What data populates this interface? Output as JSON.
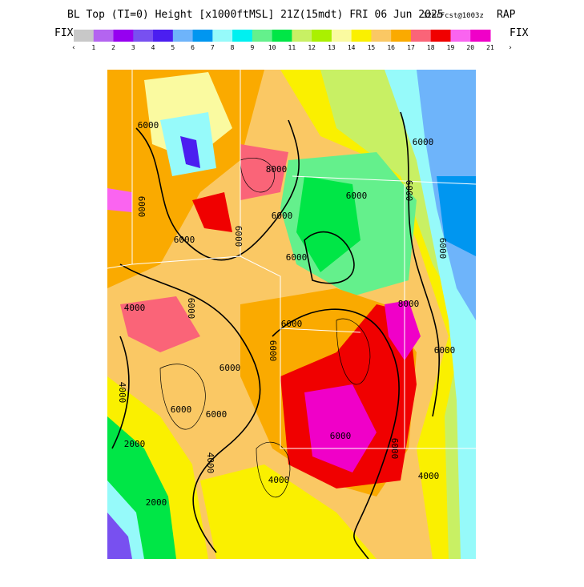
{
  "header": {
    "title": "BL Top (TI=0) Height [x1000ftMSL] 21Z(15mdt) FRI 06 Jun 2025",
    "forecast": "12hrFcst@1003z",
    "model": "RAP"
  },
  "colorbar": {
    "left_label": "FIX",
    "right_label": "FIX",
    "less": "‹",
    "more": "›",
    "colors": [
      "#c8c8c8",
      "#b464f0",
      "#9600f0",
      "#7850f0",
      "#4b1ef0",
      "#6eb4fa",
      "#0096f0",
      "#96fafa",
      "#00f0f0",
      "#64f08c",
      "#00e646",
      "#c8f064",
      "#aaf000",
      "#fafaa0",
      "#faf000",
      "#fac864",
      "#faaa00",
      "#fa6478",
      "#f00000",
      "#fa64f0",
      "#f000c8"
    ],
    "labels": [
      "1",
      "2",
      "3",
      "4",
      "5",
      "6",
      "7",
      "8",
      "9",
      "10",
      "11",
      "12",
      "13",
      "14",
      "15",
      "16",
      "17",
      "18",
      "19",
      "20",
      "21"
    ]
  },
  "contour_labels": [
    "6000",
    "6000",
    "8000",
    "6000",
    "6000",
    "6000",
    "4000",
    "6000",
    "6000",
    "6000",
    "6000",
    "6000",
    "6000",
    "4000",
    "2000",
    "2000",
    "4000",
    "4000",
    "6000",
    "6000",
    "6000",
    "4000",
    "6000",
    "6000",
    "6000",
    "6000",
    "8000",
    "6000"
  ]
}
